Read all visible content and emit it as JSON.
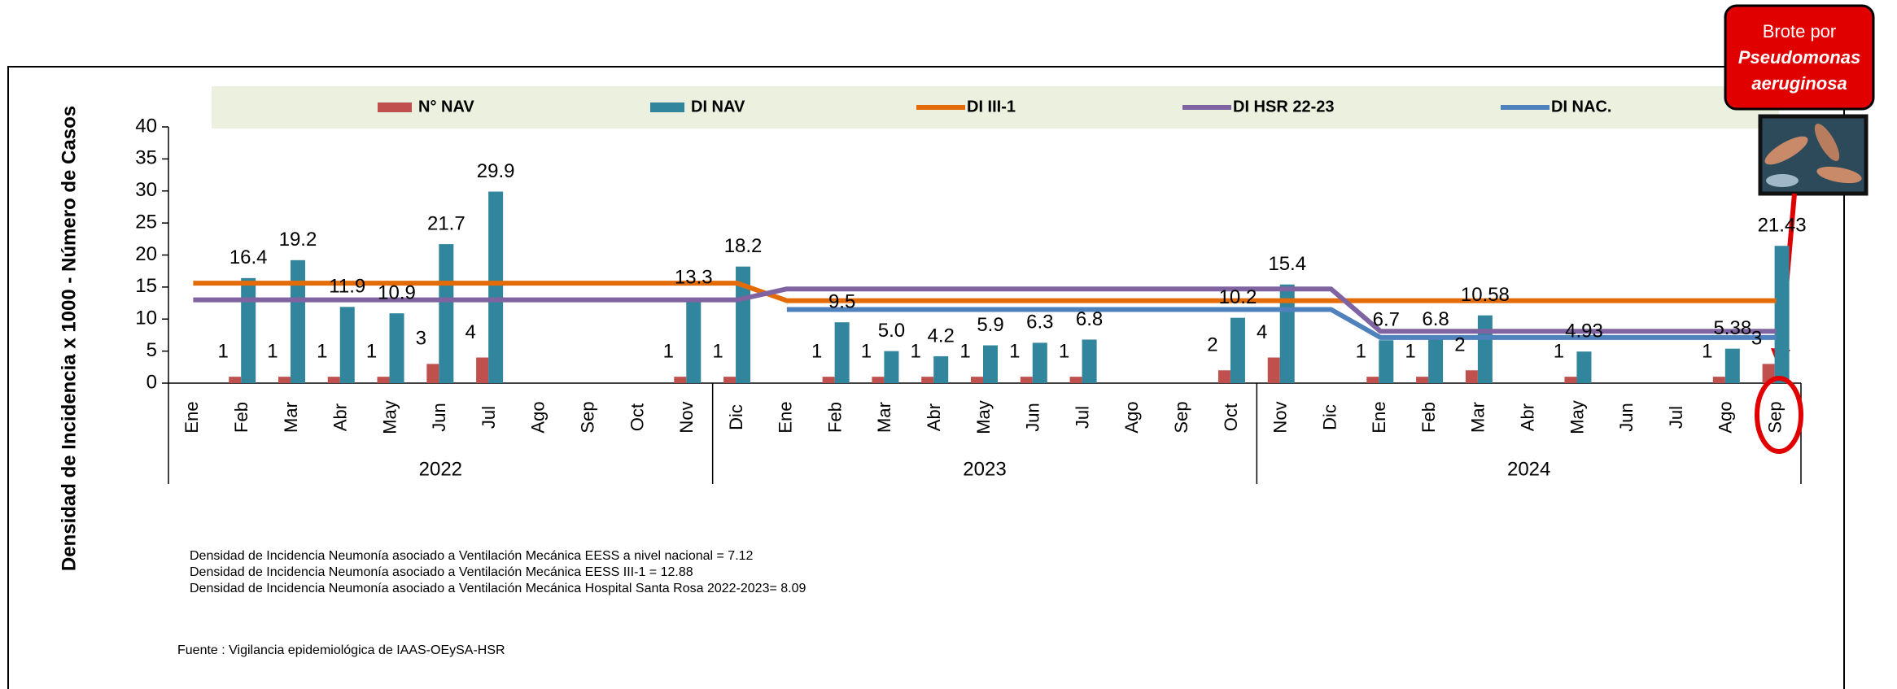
{
  "chart_data": {
    "type": "bar",
    "y_label": "Densidad de Incidencia x 1000 - Número de Casos",
    "categories": [
      "Ene",
      "Feb",
      "Mar",
      "Abr",
      "May",
      "Jun",
      "Jul",
      "Ago",
      "Sep",
      "Oct",
      "Nov",
      "Dic",
      "Ene",
      "Feb",
      "Mar",
      "Abr",
      "May",
      "Jun",
      "Jul",
      "Ago",
      "Sep",
      "Oct",
      "Nov",
      "Dic",
      "Ene",
      "Feb",
      "Mar",
      "Abr",
      "May",
      "Jun",
      "Jul",
      "Ago",
      "Sep"
    ],
    "x_groups": [
      "2022",
      "2023",
      "2024"
    ],
    "ylim": [
      0,
      40
    ],
    "yticks": [
      0,
      5,
      10,
      15,
      20,
      25,
      30,
      35,
      40
    ],
    "series": [
      {
        "name": "N° NAV",
        "type": "bar",
        "color": "#c0504d",
        "values": [
          null,
          1,
          1,
          1,
          1,
          3,
          4,
          null,
          null,
          null,
          1,
          1,
          null,
          1,
          1,
          1,
          1,
          1,
          1,
          null,
          null,
          2,
          4,
          null,
          1,
          1,
          2,
          null,
          1,
          null,
          null,
          1,
          3
        ]
      },
      {
        "name": "DI NAV",
        "type": "bar",
        "color": "#31859c",
        "values": [
          null,
          16.4,
          19.2,
          11.9,
          10.9,
          21.7,
          29.9,
          null,
          null,
          null,
          13.3,
          18.2,
          null,
          9.5,
          5,
          4.2,
          5.9,
          6.3,
          6.8,
          null,
          null,
          10.2,
          15.4,
          null,
          6.7,
          6.8,
          10.58,
          null,
          4.93,
          null,
          null,
          5.38,
          21.43
        ],
        "value_labels": [
          null,
          "16.4",
          "19.2",
          "11.9",
          "10.9",
          "21.7",
          "29.9",
          null,
          null,
          null,
          "13.3",
          "18.2",
          null,
          "9.5",
          "5.0",
          "4.2",
          "5.9",
          "6.3",
          "6.8",
          null,
          null,
          "10.2",
          "15.4",
          null,
          "6.7",
          "6.8",
          "10.58",
          null,
          "4.93",
          null,
          null,
          "5.38",
          "21.43"
        ]
      },
      {
        "name": "DI III-1",
        "type": "line",
        "color": "#e36c09",
        "values": [
          15.6,
          15.6,
          15.6,
          15.6,
          15.6,
          15.6,
          15.6,
          15.6,
          15.6,
          15.6,
          15.6,
          15.6,
          12.88,
          12.88,
          12.88,
          12.88,
          12.88,
          12.88,
          12.88,
          12.88,
          12.88,
          12.88,
          12.88,
          12.88,
          12.88,
          12.88,
          12.88,
          12.88,
          12.88,
          12.88,
          12.88,
          12.88,
          12.88
        ]
      },
      {
        "name": "DI HSR 22-23",
        "type": "line",
        "color": "#8064a2",
        "values": [
          13,
          13,
          13,
          13,
          13,
          13,
          13,
          13,
          13,
          13,
          13,
          13,
          14.7,
          14.7,
          14.7,
          14.7,
          14.7,
          14.7,
          14.7,
          14.7,
          14.7,
          14.7,
          14.7,
          14.7,
          8.09,
          8.09,
          8.09,
          8.09,
          8.09,
          8.09,
          8.09,
          8.09,
          8.09
        ]
      },
      {
        "name": "DI NAC.",
        "type": "line",
        "color": "#4f81bd",
        "values": [
          null,
          null,
          null,
          null,
          null,
          null,
          null,
          null,
          null,
          null,
          null,
          null,
          11.5,
          11.5,
          11.5,
          11.5,
          11.5,
          11.5,
          11.5,
          11.5,
          11.5,
          11.5,
          11.5,
          11.5,
          7.12,
          7.12,
          7.12,
          7.12,
          7.12,
          7.12,
          7.12,
          7.12,
          7.12
        ]
      }
    ],
    "notes": [
      "Densidad de Incidencia Neumonía asociado a Ventilación Mecánica EESS a nivel nacional = 7.12",
      "Densidad de Incidencia Neumonía asociado a Ventilación Mecánica EESS III-1 = 12.88",
      "Densidad de Incidencia Neumonía asociado a Ventilación Mecánica Hospital Santa Rosa 2022-2023= 8.09"
    ],
    "source": "Fuente : Vigilancia epidemiológica de IAAS-OEySA-HSR",
    "annotation": [
      "Brote por",
      "Pseudomonas",
      "aeruginosa"
    ]
  }
}
